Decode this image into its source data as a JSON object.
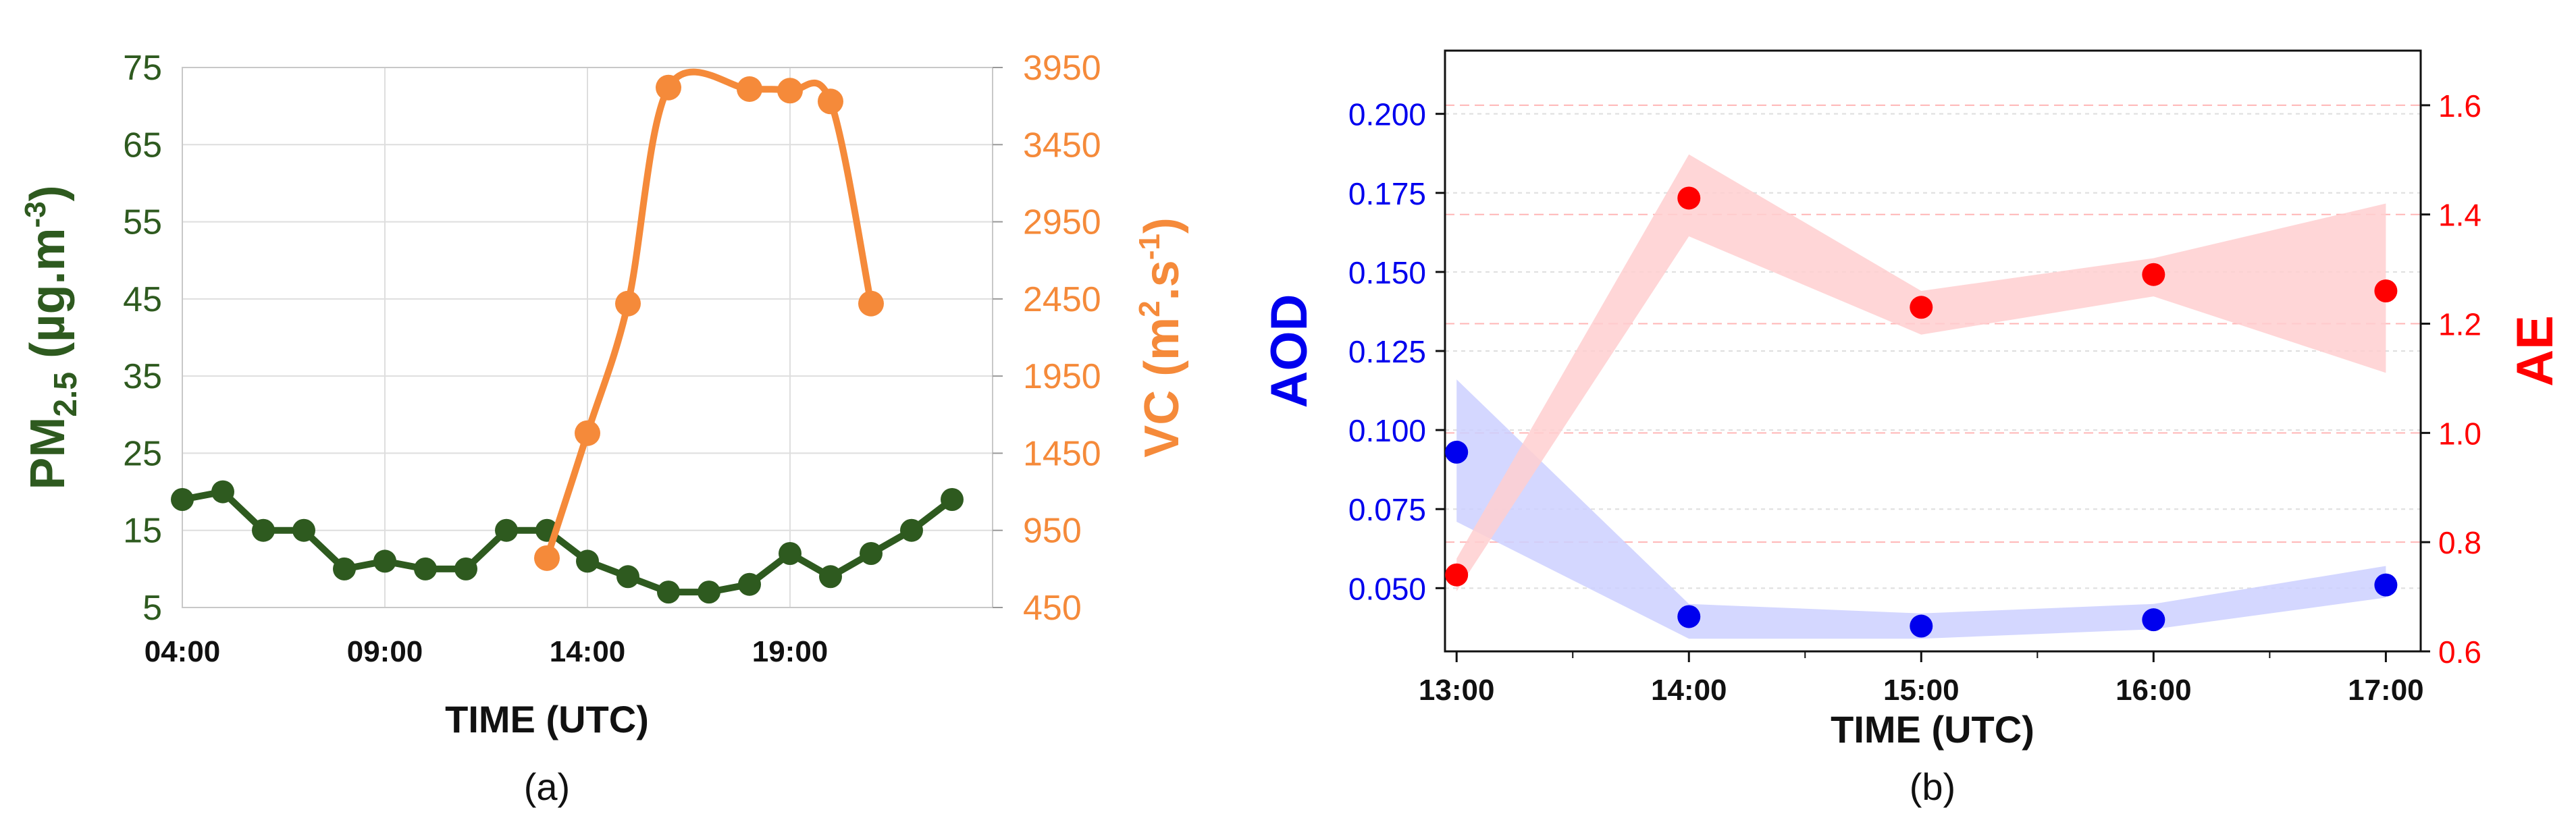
{
  "colors": {
    "pm": "#2e5a1f",
    "vc": "#f58a3a",
    "aod": "#0000ee",
    "ae": "#ff0000",
    "aod_band": "#ccd0ff",
    "ae_band": "#ffcfd0",
    "grid": "#dedede",
    "grid_pink": "#ffb6b6",
    "axis": "#111111"
  },
  "chart_data": [
    {
      "type": "line",
      "panel_label": "(a)",
      "xlabel": "TIME (UTC)",
      "x_unit": "hour",
      "xlim": [
        4,
        24
      ],
      "x_ticks": [
        4,
        9,
        14,
        19
      ],
      "x_tick_labels": [
        "04:00",
        "09:00",
        "14:00",
        "19:00"
      ],
      "grid": true,
      "y_left": {
        "label_main": "PM",
        "label_sub": "2.5",
        "label_unit_pre": " (µg.m",
        "label_unit_sup": "-3",
        "label_unit_post": ")",
        "lim": [
          5,
          75
        ],
        "ticks": [
          5,
          15,
          25,
          35,
          45,
          55,
          65,
          75
        ],
        "tick_labels": [
          "5",
          "15",
          "25",
          "35",
          "45",
          "55",
          "65",
          "75"
        ]
      },
      "y_right": {
        "label_pre": "VC (m",
        "label_sup1": "2",
        "label_mid": ".s",
        "label_sup2": "-1",
        "label_post": ")",
        "lim": [
          450,
          3950
        ],
        "ticks": [
          450,
          950,
          1450,
          1950,
          2450,
          2950,
          3450,
          3950
        ],
        "tick_labels": [
          "450",
          "950",
          "1450",
          "1950",
          "2450",
          "2950",
          "3450",
          "3950"
        ]
      },
      "series": [
        {
          "axis": "left",
          "x": [
            4,
            5,
            6,
            7,
            8,
            9,
            10,
            11,
            12,
            13,
            14,
            15,
            16,
            17,
            18,
            19,
            20,
            21,
            22,
            23
          ],
          "values": [
            19,
            20,
            15,
            15,
            10,
            11,
            10,
            10,
            15,
            15,
            11,
            9,
            7,
            7,
            8,
            12,
            9,
            12,
            15,
            19
          ]
        },
        {
          "axis": "right",
          "x": [
            13,
            14,
            15,
            16,
            18,
            19,
            20,
            21
          ],
          "values": [
            770,
            1580,
            2420,
            3820,
            3810,
            3800,
            3730,
            2420
          ]
        }
      ]
    },
    {
      "type": "scatter",
      "panel_label": "(b)",
      "xlabel": "TIME (UTC)",
      "x_unit": "hour",
      "xlim": [
        12.95,
        17.15
      ],
      "x_ticks": [
        13,
        14,
        15,
        16,
        17
      ],
      "x_tick_labels": [
        "13:00",
        "14:00",
        "15:00",
        "16:00",
        "17:00"
      ],
      "y_left": {
        "label": "AOD",
        "lim": [
          0.03,
          0.22
        ],
        "ticks": [
          0.05,
          0.075,
          0.1,
          0.125,
          0.15,
          0.175,
          0.2
        ],
        "tick_labels": [
          "0.050",
          "0.075",
          "0.100",
          "0.125",
          "0.150",
          "0.175",
          "0.200"
        ]
      },
      "y_right": {
        "label": "AE",
        "lim": [
          0.6,
          1.7
        ],
        "ticks": [
          0.6,
          0.8,
          1.0,
          1.2,
          1.4,
          1.6
        ],
        "tick_labels": [
          "0.6",
          "0.8",
          "1.0",
          "1.2",
          "1.4",
          "1.6"
        ]
      },
      "series": [
        {
          "axis": "left",
          "x": [
            13,
            14,
            15,
            16,
            17
          ],
          "values": [
            0.093,
            0.041,
            0.038,
            0.04,
            0.051
          ],
          "band_upper": [
            0.116,
            0.045,
            0.042,
            0.045,
            0.057
          ],
          "band_lower": [
            0.071,
            0.034,
            0.034,
            0.037,
            0.047
          ]
        },
        {
          "axis": "right",
          "x": [
            13,
            14,
            15,
            16,
            17
          ],
          "values": [
            0.74,
            1.43,
            1.23,
            1.29,
            1.26
          ],
          "band_upper": [
            0.77,
            1.51,
            1.26,
            1.32,
            1.42
          ],
          "band_lower": [
            0.71,
            1.36,
            1.18,
            1.25,
            1.11
          ]
        }
      ]
    }
  ]
}
